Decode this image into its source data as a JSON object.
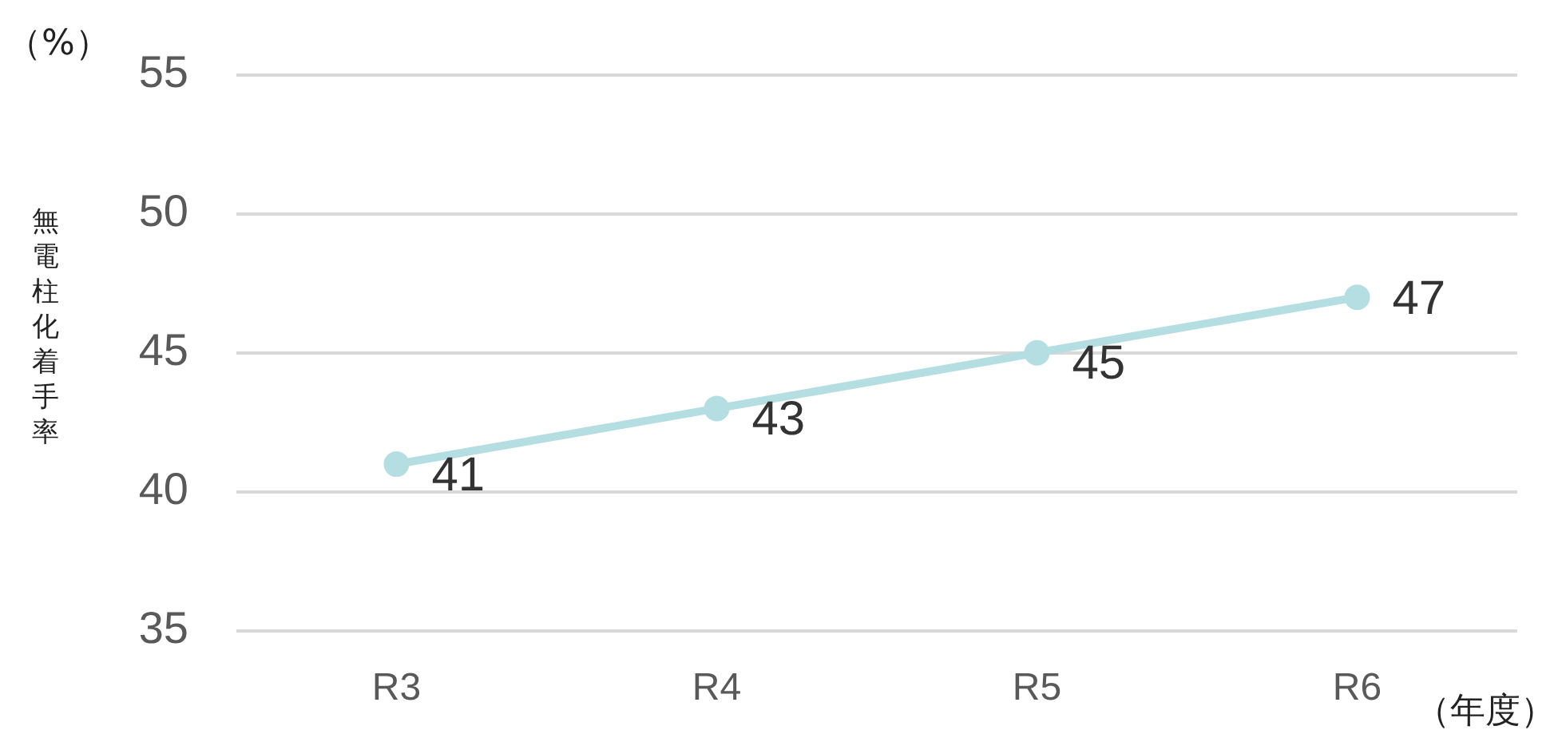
{
  "chart_data": {
    "type": "line",
    "ylabel": "無電柱化着手率",
    "xlabel": "（年度）",
    "annotations": [
      "（%）"
    ],
    "categories": [
      "R3",
      "R4",
      "R5",
      "R6"
    ],
    "series": [
      {
        "color": "#b4dee1",
        "values": [
          41,
          43,
          45,
          47
        ]
      }
    ],
    "ylim": [
      35,
      55
    ],
    "yticks": [
      35,
      40,
      45,
      50,
      55
    ],
    "grid": "y",
    "legend": false,
    "marker": "circle",
    "line_style": "solid",
    "data_labels": true
  }
}
